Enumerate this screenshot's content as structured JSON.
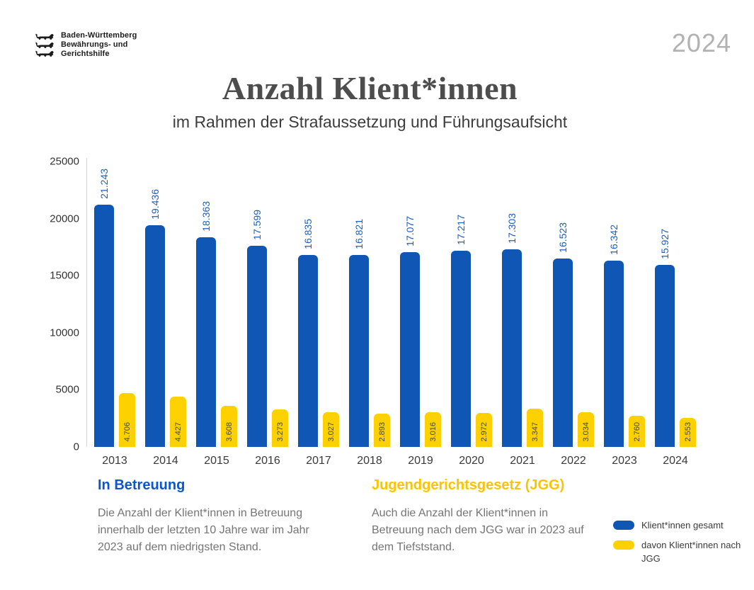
{
  "meta": {
    "year_badge": "2024"
  },
  "logo": {
    "lines": [
      "Baden-Württemberg",
      "Bewährungs- und",
      "Gerichtshilfe"
    ]
  },
  "header": {
    "title": "Anzahl Klient*innen",
    "subtitle": "im Rahmen der Strafaussetzung und Führungsaufsicht"
  },
  "chart_data": {
    "type": "bar",
    "title": "Anzahl Klient*innen",
    "subtitle": "im Rahmen der Strafaussetzung und Führungsaufsicht",
    "categories": [
      "2013",
      "2014",
      "2015",
      "2016",
      "2017",
      "2018",
      "2019",
      "2020",
      "2021",
      "2022",
      "2023",
      "2024"
    ],
    "series": [
      {
        "name": "Klient*innen gesamt",
        "color": "#1056b4",
        "values": [
          21243,
          19436,
          18363,
          17599,
          16835,
          16821,
          17077,
          17217,
          17303,
          16523,
          16342,
          15927
        ],
        "labels": [
          "21.243",
          "19.436",
          "18.363",
          "17.599",
          "16.835",
          "16.821",
          "17.077",
          "17.217",
          "17.303",
          "16.523",
          "16.342",
          "15.927"
        ]
      },
      {
        "name": "davon Klient*innen nach JGG",
        "color": "#fdd000",
        "values": [
          4706,
          4427,
          3608,
          3273,
          3027,
          2893,
          3016,
          2972,
          3347,
          3034,
          2760,
          2553
        ],
        "labels": [
          "4.706",
          "4.427",
          "3.608",
          "3.273",
          "3.027",
          "2.893",
          "3.016",
          "2.972",
          "3.347",
          "3.034",
          "2.760",
          "2.553"
        ]
      }
    ],
    "xlabel": "",
    "ylabel": "",
    "ylim": [
      0,
      25000
    ],
    "yticks": [
      0,
      5000,
      10000,
      15000,
      20000,
      25000
    ],
    "grid": false,
    "legend_position": "bottom-right"
  },
  "sections": {
    "betreuung": {
      "heading": "In Betreuung",
      "color": "#0c56d0",
      "text": "Die Anzahl der Klient*innen in Betreuung innerhalb der letzten 10 Jahre war im Jahr 2023 auf dem niedrigsten Stand."
    },
    "jgg": {
      "heading": "Jugendgerichtsgesetz (JGG)",
      "color": "#fcc400",
      "text": "Auch die Anzahl der Klient*innen in Betreuung nach dem JGG war in 2023 auf dem Tiefststand."
    }
  },
  "legend": {
    "items": [
      {
        "label": "Klient*innen gesamt",
        "color": "#1056b4"
      },
      {
        "label": "davon Klient*innen nach JGG",
        "color": "#fdd000"
      }
    ]
  }
}
